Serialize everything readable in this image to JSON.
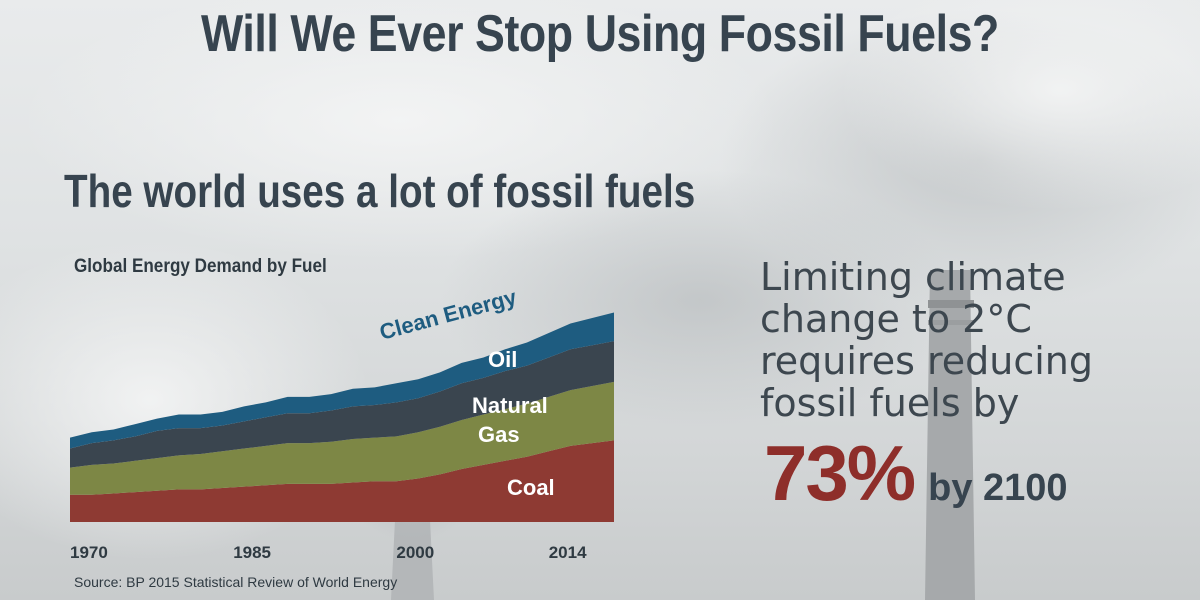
{
  "header": {
    "title": "Will We Ever Stop Using Fossil Fuels?",
    "subtitle": "The world uses a lot of fossil fuels"
  },
  "message": {
    "lines": [
      "Limiting climate",
      "change to 2°C",
      "requires reducing",
      "fossil fuels by"
    ],
    "stat_value": "73%",
    "stat_suffix": "by 2100"
  },
  "colors": {
    "coal": "#8e3a33",
    "natural_gas": "#7d8745",
    "oil": "#3a454f",
    "clean_energy": "#1e5c80",
    "stat": "#8e2e2a"
  },
  "chart_data": {
    "type": "area",
    "stacked": true,
    "title": "Global Energy Demand by Fuel",
    "source": "Source: BP 2015 Statistical Review of World Energy",
    "x": [
      1970,
      1972,
      1974,
      1976,
      1978,
      1980,
      1982,
      1984,
      1986,
      1988,
      1990,
      1992,
      1994,
      1996,
      1998,
      2000,
      2002,
      2004,
      2006,
      2008,
      2010,
      2012,
      2014,
      2016,
      2018,
      2020
    ],
    "x_ticks": [
      {
        "value": 1970,
        "label": "1970"
      },
      {
        "value": 1985,
        "label": "1985"
      },
      {
        "value": 2000,
        "label": "2000"
      },
      {
        "value": 2014,
        "label": "2014"
      }
    ],
    "ylim": [
      0,
      100
    ],
    "series": [
      {
        "name": "Coal",
        "key": "coal",
        "values": [
          10,
          10,
          10.5,
          11,
          11.5,
          12,
          12,
          12.5,
          13,
          13.5,
          14,
          14,
          14,
          14.5,
          15,
          15,
          16,
          17.5,
          19.5,
          21,
          22.5,
          24,
          26,
          28,
          29,
          30
        ]
      },
      {
        "name": "Natural Gas",
        "key": "natural_gas",
        "values": [
          10,
          11,
          11,
          11.5,
          12,
          12.5,
          13,
          13.5,
          14,
          14.5,
          15,
          15,
          15.5,
          16,
          16,
          16.5,
          17,
          17.5,
          18,
          18.5,
          19,
          19.5,
          20,
          20.5,
          21,
          21.5
        ]
      },
      {
        "name": "Oil",
        "key": "oil",
        "values": [
          7,
          8,
          8.5,
          9,
          10,
          10,
          9.5,
          9.5,
          10,
          10.5,
          11,
          11,
          11.5,
          12,
          12,
          12.5,
          12.5,
          13,
          13.5,
          13.5,
          14,
          14,
          14.5,
          15,
          15,
          15
        ]
      },
      {
        "name": "Clean Energy",
        "key": "clean_energy",
        "values": [
          4,
          4,
          4,
          4.5,
          4.5,
          5,
          5,
          5,
          5.5,
          5.5,
          6,
          6,
          6,
          6.5,
          6.5,
          7,
          7,
          7,
          7.5,
          7.5,
          8,
          8.5,
          9,
          9.5,
          10,
          10.5
        ]
      }
    ]
  }
}
